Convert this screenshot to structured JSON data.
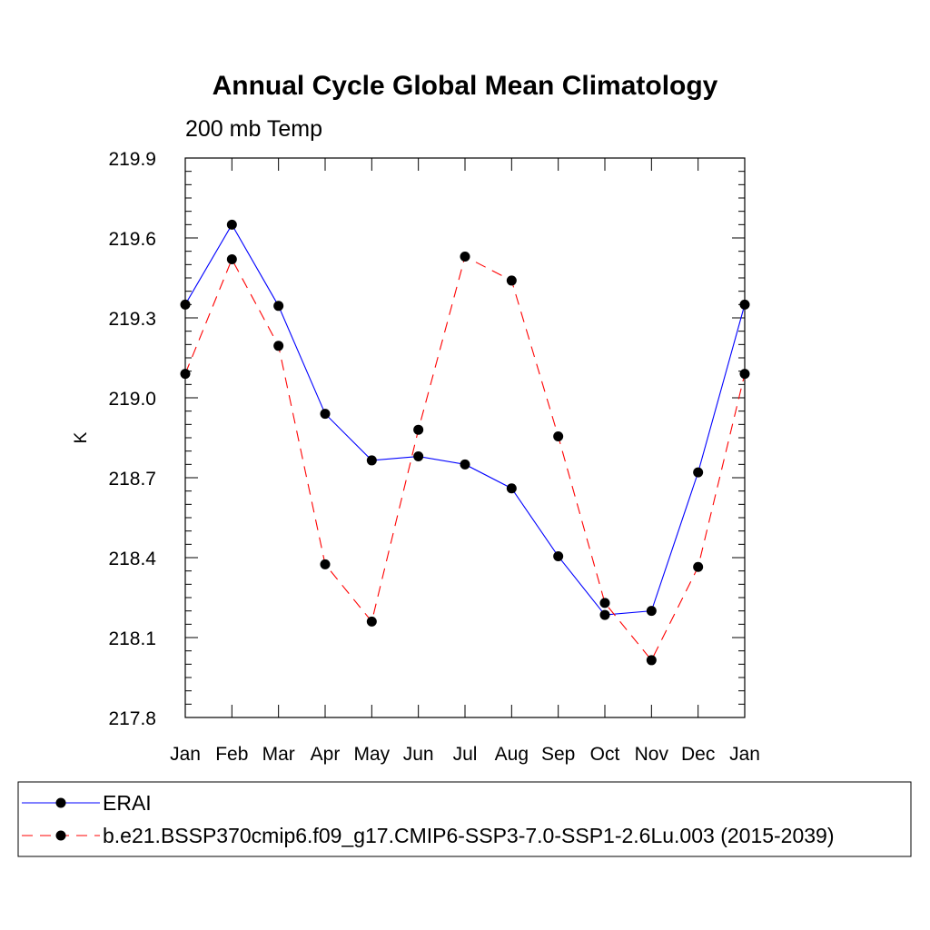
{
  "chart_data": {
    "type": "line",
    "title": "Annual Cycle Global Mean Climatology",
    "subtitle": "200 mb Temp",
    "xlabel": "",
    "ylabel": "K",
    "categories": [
      "Jan",
      "Feb",
      "Mar",
      "Apr",
      "May",
      "Jun",
      "Jul",
      "Aug",
      "Sep",
      "Oct",
      "Nov",
      "Dec",
      "Jan"
    ],
    "ylim": [
      217.8,
      219.9
    ],
    "yticks": [
      "219.9",
      "219.6",
      "219.3",
      "219.0",
      "218.7",
      "218.4",
      "218.1",
      "217.8"
    ],
    "grid": false,
    "legend_position": "bottom",
    "series": [
      {
        "name": "ERAI",
        "color": "#0000ff",
        "dash": "solid",
        "values": [
          219.35,
          219.65,
          219.345,
          218.94,
          218.765,
          218.78,
          218.75,
          218.66,
          218.405,
          218.185,
          218.2,
          218.72,
          219.35
        ]
      },
      {
        "name": "b.e21.BSSP370cmip6.f09_g17.CMIP6-SSP3-7.0-SSP1-2.6Lu.003 (2015-2039)",
        "color": "#ff0000",
        "dash": "dashed",
        "values": [
          219.09,
          219.52,
          219.195,
          218.375,
          218.16,
          218.88,
          219.53,
          219.44,
          218.855,
          218.23,
          218.015,
          218.365,
          219.09
        ]
      }
    ]
  }
}
